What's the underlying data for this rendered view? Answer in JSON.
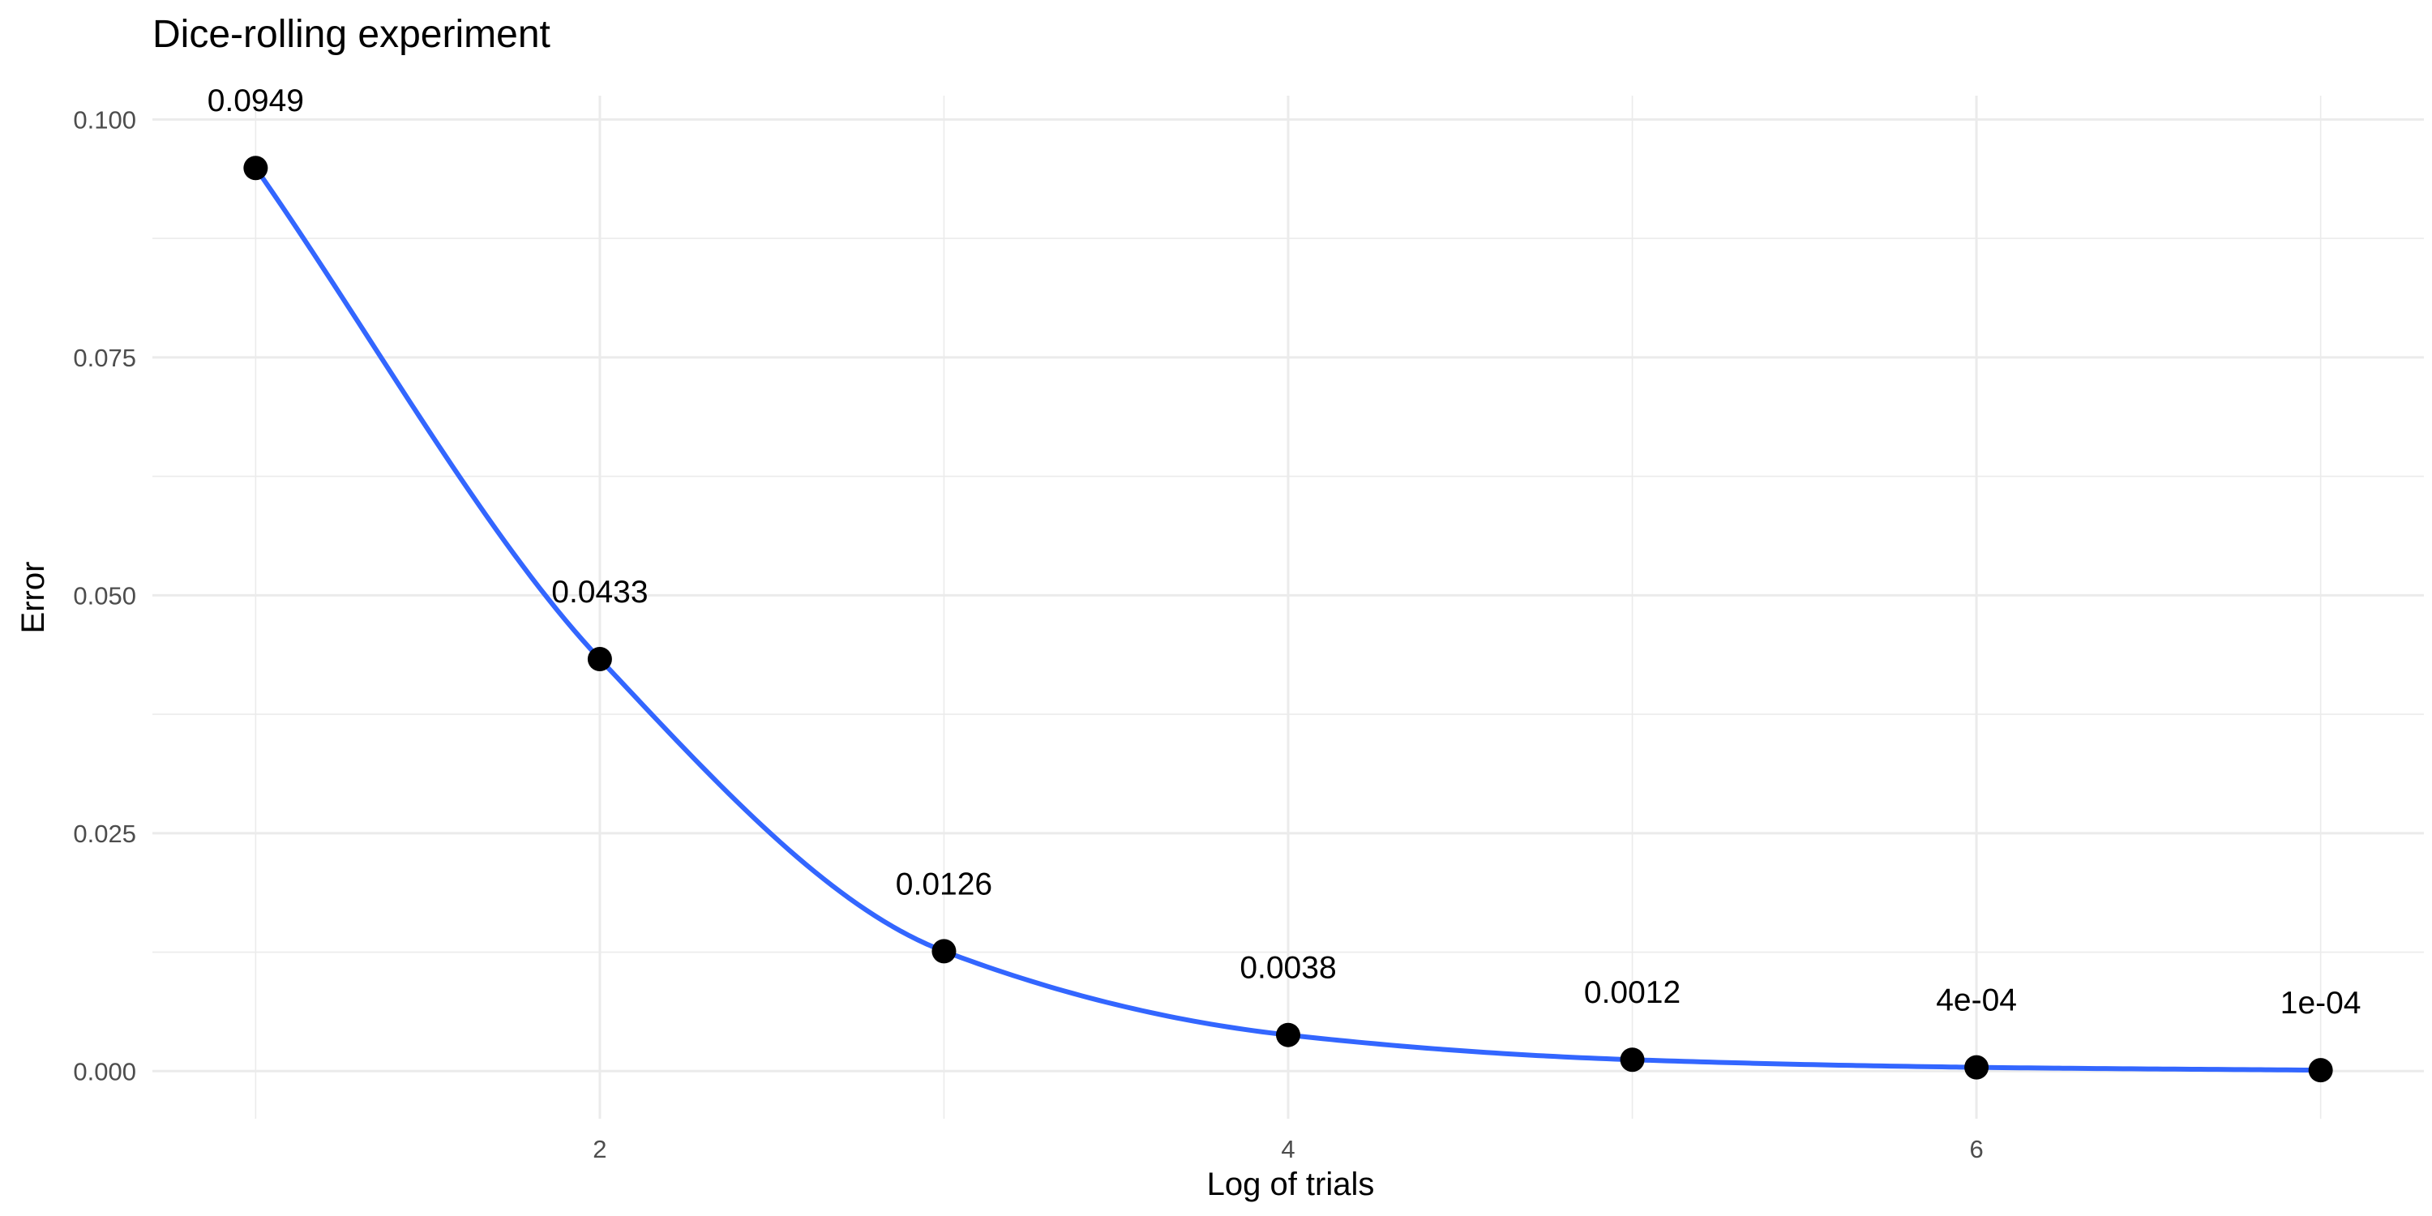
{
  "chart_data": {
    "type": "line",
    "title": "Dice-rolling experiment",
    "xlabel": "Log of trials",
    "ylabel": "Error",
    "x": [
      1,
      2,
      3,
      4,
      5,
      6,
      7
    ],
    "series": [
      {
        "values": [
          0.0949,
          0.0433,
          0.0126,
          0.0038,
          0.0012,
          0.0004,
          0.0001
        ],
        "labels": [
          "0.0949",
          "0.0433",
          "0.0126",
          "0.0038",
          "0.0012",
          "4e-04",
          "1e-04"
        ]
      }
    ],
    "xlim": [
      0.7,
      7.3
    ],
    "ylim": [
      -0.005,
      0.1025
    ],
    "x_ticks": [
      2,
      4,
      6
    ],
    "x_tick_labels": [
      "2",
      "4",
      "6"
    ],
    "y_ticks": [
      0,
      0.025,
      0.05,
      0.075,
      0.1
    ],
    "y_tick_labels": [
      "0.000",
      "0.025",
      "0.050",
      "0.075",
      "0.100"
    ],
    "grid": true,
    "smoothed": true,
    "colors": {
      "line": "#3366FF",
      "point": "#000000",
      "grid": "#EBEBEB"
    }
  }
}
